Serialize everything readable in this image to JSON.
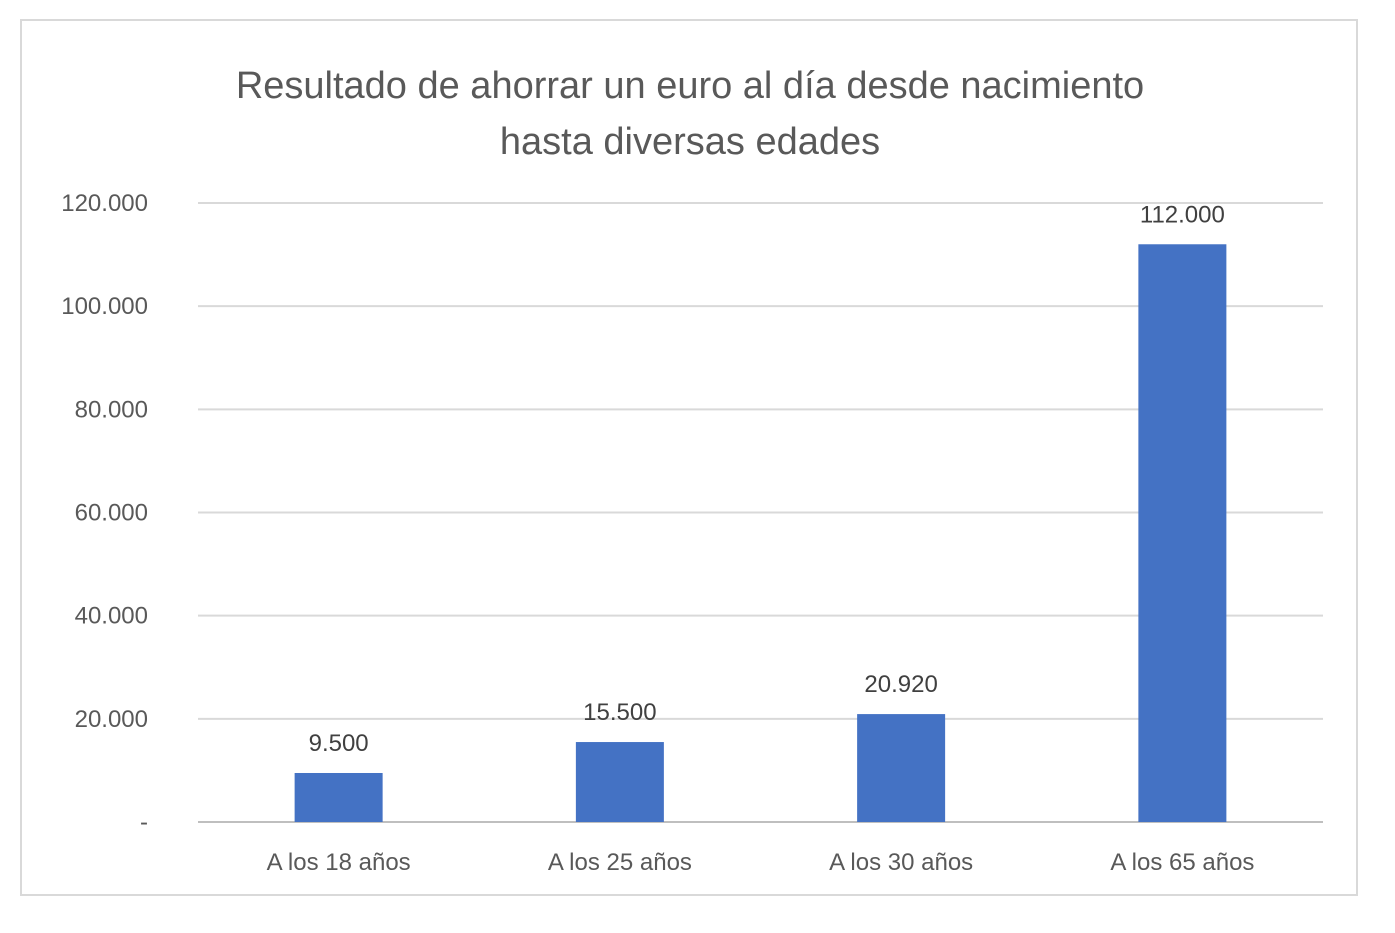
{
  "chart_data": {
    "type": "bar",
    "title_lines": [
      "Resultado de ahorrar un euro al día desde nacimiento",
      "hasta diversas edades"
    ],
    "categories": [
      "A los 18 años",
      "A los 25 años",
      "A los 30 años",
      "A los 65 años"
    ],
    "values": [
      9500,
      15500,
      20920,
      112000
    ],
    "data_labels": [
      "9.500",
      "15.500",
      "20.920",
      "112.000"
    ],
    "ylim": [
      0,
      120000
    ],
    "yticks": [
      0,
      20000,
      40000,
      60000,
      80000,
      100000,
      120000
    ],
    "ytick_labels": [
      "-",
      "20.000",
      "40.000",
      "60.000",
      "80.000",
      "100.000",
      "120.000"
    ],
    "xlabel": "",
    "ylabel": "",
    "grid": true,
    "legend": "none",
    "colors": {
      "bar": "#4472c4",
      "grid": "#d9d9d9",
      "axis_line": "#bfbfbf",
      "text": "#595959",
      "frame": "#d9d9d9"
    }
  }
}
